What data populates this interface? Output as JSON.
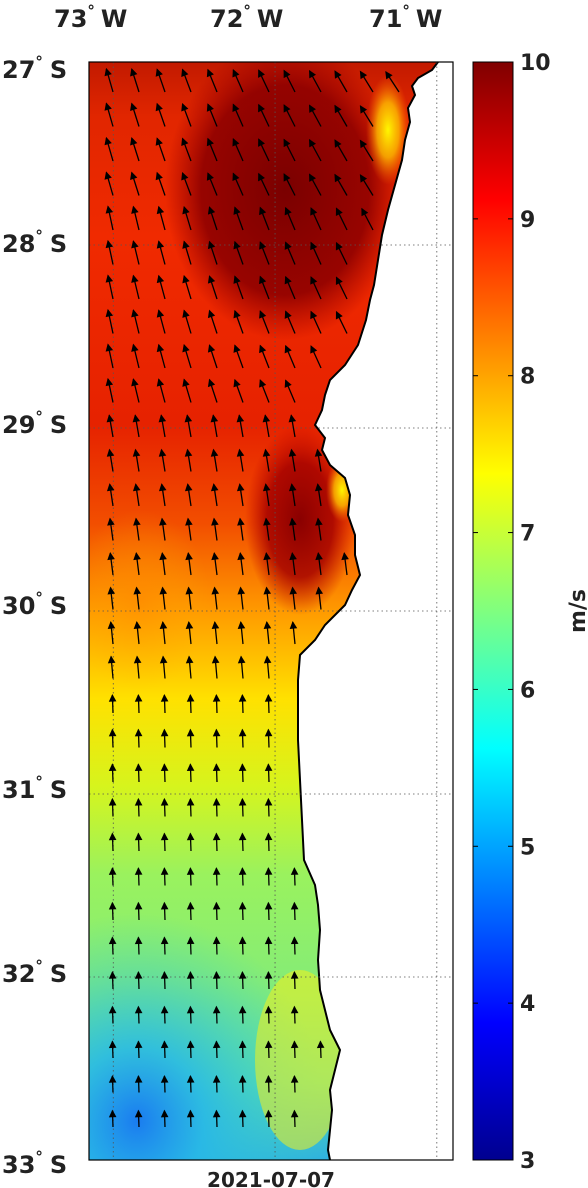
{
  "map": {
    "longitude_labels": [
      {
        "deg": "73",
        "sym": "°",
        "hem": "W",
        "lon": -73
      },
      {
        "deg": "72",
        "sym": "°",
        "hem": "W",
        "lon": -72
      },
      {
        "deg": "71",
        "sym": "°",
        "hem": "W",
        "lon": -71
      }
    ],
    "latitude_labels": [
      {
        "deg": "27",
        "sym": "°",
        "hem": "S",
        "lat": -27
      },
      {
        "deg": "28",
        "sym": "°",
        "hem": "S",
        "lat": -28
      },
      {
        "deg": "29",
        "sym": "°",
        "hem": "S",
        "lat": -29
      },
      {
        "deg": "30",
        "sym": "°",
        "hem": "S",
        "lat": -30
      },
      {
        "deg": "31",
        "sym": "°",
        "hem": "S",
        "lat": -31
      },
      {
        "deg": "32",
        "sym": "°",
        "hem": "S",
        "lat": -32
      },
      {
        "deg": "33",
        "sym": "°",
        "hem": "S",
        "lat": -33
      }
    ],
    "lon_range": [
      -73.15,
      -70.9
    ],
    "lat_range": [
      -33,
      -27
    ],
    "date": "2021-07-07",
    "grid": true,
    "land_color": "#ffffff"
  },
  "colorbar": {
    "label": "m/s",
    "min": 3,
    "max": 10,
    "ticks": [
      "3",
      "4",
      "5",
      "6",
      "7",
      "8",
      "9",
      "10"
    ],
    "colormap": "jet"
  }
}
